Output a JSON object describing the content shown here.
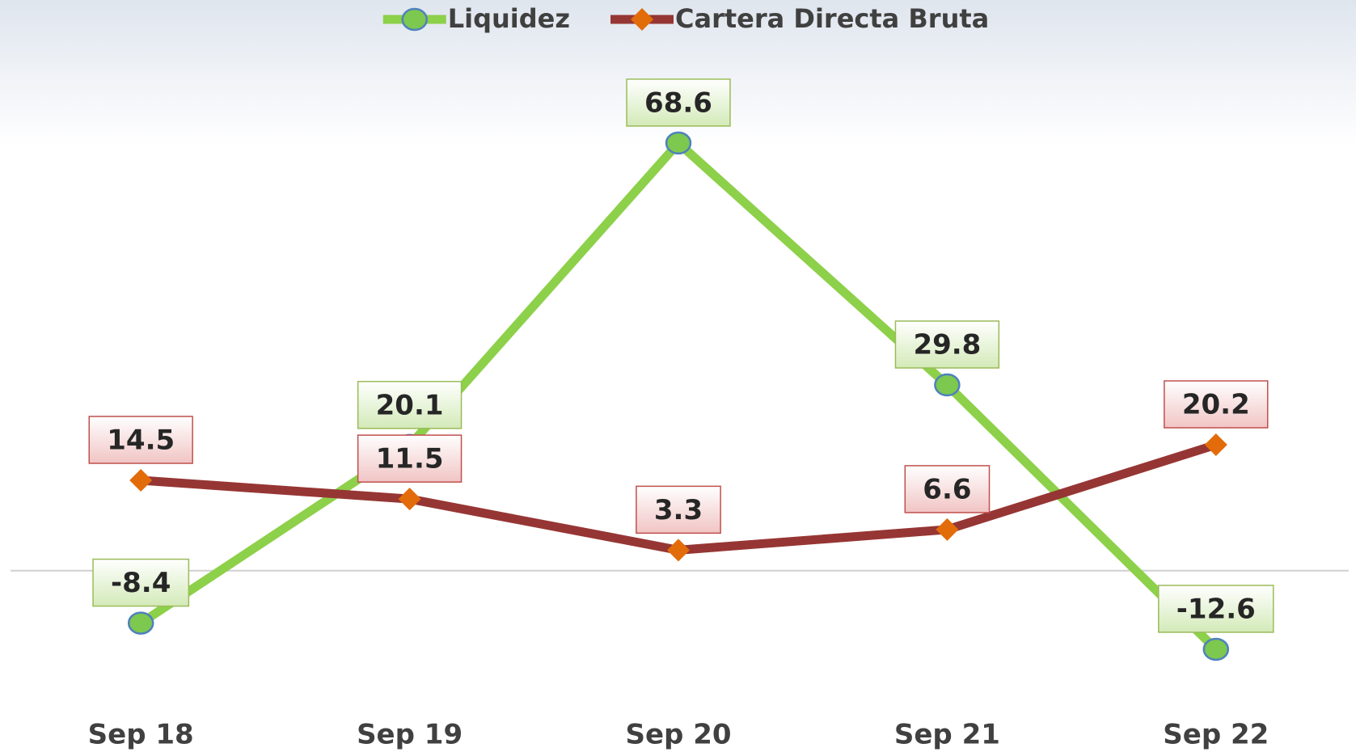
{
  "chart_data": {
    "type": "line",
    "categories": [
      "Sep 18",
      "Sep 19",
      "Sep 20",
      "Sep 21",
      "Sep 22"
    ],
    "series": [
      {
        "name": "Liquidez",
        "color": "#8dd04a",
        "values": [
          -8.4,
          20.1,
          68.6,
          29.8,
          -12.6
        ]
      },
      {
        "name": "Cartera Directa Bruta",
        "color": "#963634",
        "values": [
          14.5,
          11.5,
          3.3,
          6.6,
          20.2
        ]
      }
    ],
    "ylim": [
      -20,
      80
    ],
    "legend": "top"
  }
}
